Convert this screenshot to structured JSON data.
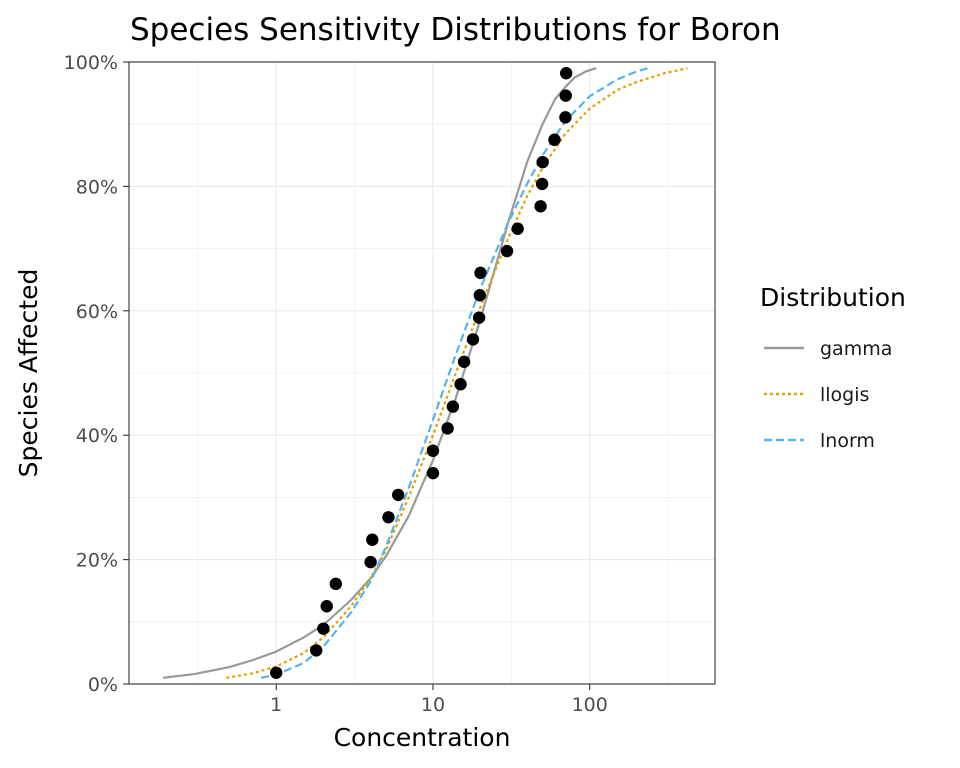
{
  "chart_data": {
    "type": "line",
    "title": "Species Sensitivity Distributions for Boron",
    "xlabel": "Concentration",
    "ylabel": "Species Affected",
    "x_scale": "log10",
    "xlim": [
      0.115,
      630
    ],
    "ylim": [
      0,
      1
    ],
    "x_ticks": [
      1,
      10,
      100
    ],
    "x_tick_labels": [
      "1",
      "10",
      "100"
    ],
    "y_ticks": [
      0,
      0.2,
      0.4,
      0.6,
      0.8,
      1.0
    ],
    "y_tick_labels": [
      "0%",
      "20%",
      "40%",
      "60%",
      "80%",
      "100%"
    ],
    "grid": true,
    "legend": {
      "title": "Distribution",
      "placement": "right",
      "items": [
        {
          "label": "gamma",
          "color": "#999999",
          "dash": "solid"
        },
        {
          "label": "llogis",
          "color": "#E69F00",
          "dash": "dotted"
        },
        {
          "label": "lnorm",
          "color": "#56B4E9",
          "dash": "dashed"
        }
      ]
    },
    "points": {
      "color": "#000000",
      "x": [
        1.0,
        1.8,
        2.0,
        2.1,
        2.4,
        4.0,
        4.1,
        5.2,
        6.0,
        10.0,
        10.0,
        12.4,
        13.4,
        15.0,
        15.8,
        18.0,
        19.7,
        19.9,
        20.1,
        29.7,
        34.7,
        48.6,
        49.7,
        50.1,
        59.6,
        70.0,
        70.3,
        70.8
      ],
      "y": [
        0.018,
        0.054,
        0.089,
        0.125,
        0.161,
        0.196,
        0.232,
        0.268,
        0.304,
        0.339,
        0.375,
        0.411,
        0.446,
        0.482,
        0.518,
        0.554,
        0.589,
        0.625,
        0.661,
        0.696,
        0.732,
        0.768,
        0.804,
        0.839,
        0.875,
        0.911,
        0.946,
        0.982
      ]
    },
    "series": [
      {
        "name": "gamma",
        "x": [
          0.19,
          0.3,
          0.5,
          0.7,
          1.0,
          1.5,
          2.0,
          3.0,
          4.0,
          5.0,
          7.0,
          10.0,
          14.0,
          20.0,
          25.0,
          30.0,
          40.0,
          50.0,
          60.0,
          70.0,
          80.0,
          95.0,
          110.0
        ],
        "y": [
          0.01,
          0.016,
          0.027,
          0.038,
          0.052,
          0.075,
          0.095,
          0.135,
          0.17,
          0.205,
          0.27,
          0.36,
          0.46,
          0.585,
          0.67,
          0.74,
          0.84,
          0.9,
          0.94,
          0.96,
          0.975,
          0.985,
          0.99
        ]
      },
      {
        "name": "llogis",
        "x": [
          0.48,
          0.7,
          1.0,
          1.5,
          2.0,
          3.0,
          4.0,
          5.0,
          7.0,
          10.0,
          14.0,
          20.0,
          30.0,
          40.0,
          50.0,
          70.0,
          100.0,
          150.0,
          200.0,
          300.0,
          420.0
        ],
        "y": [
          0.01,
          0.017,
          0.028,
          0.05,
          0.075,
          0.125,
          0.17,
          0.215,
          0.3,
          0.4,
          0.5,
          0.605,
          0.715,
          0.785,
          0.83,
          0.885,
          0.925,
          0.955,
          0.968,
          0.982,
          0.99
        ]
      },
      {
        "name": "lnorm",
        "x": [
          0.8,
          1.0,
          1.5,
          2.0,
          3.0,
          4.0,
          5.0,
          7.0,
          10.0,
          14.0,
          20.0,
          30.0,
          40.0,
          50.0,
          70.0,
          100.0,
          150.0,
          200.0,
          235.0
        ],
        "y": [
          0.01,
          0.015,
          0.034,
          0.06,
          0.115,
          0.165,
          0.22,
          0.315,
          0.425,
          0.53,
          0.635,
          0.74,
          0.805,
          0.85,
          0.905,
          0.945,
          0.972,
          0.985,
          0.99
        ]
      }
    ]
  }
}
